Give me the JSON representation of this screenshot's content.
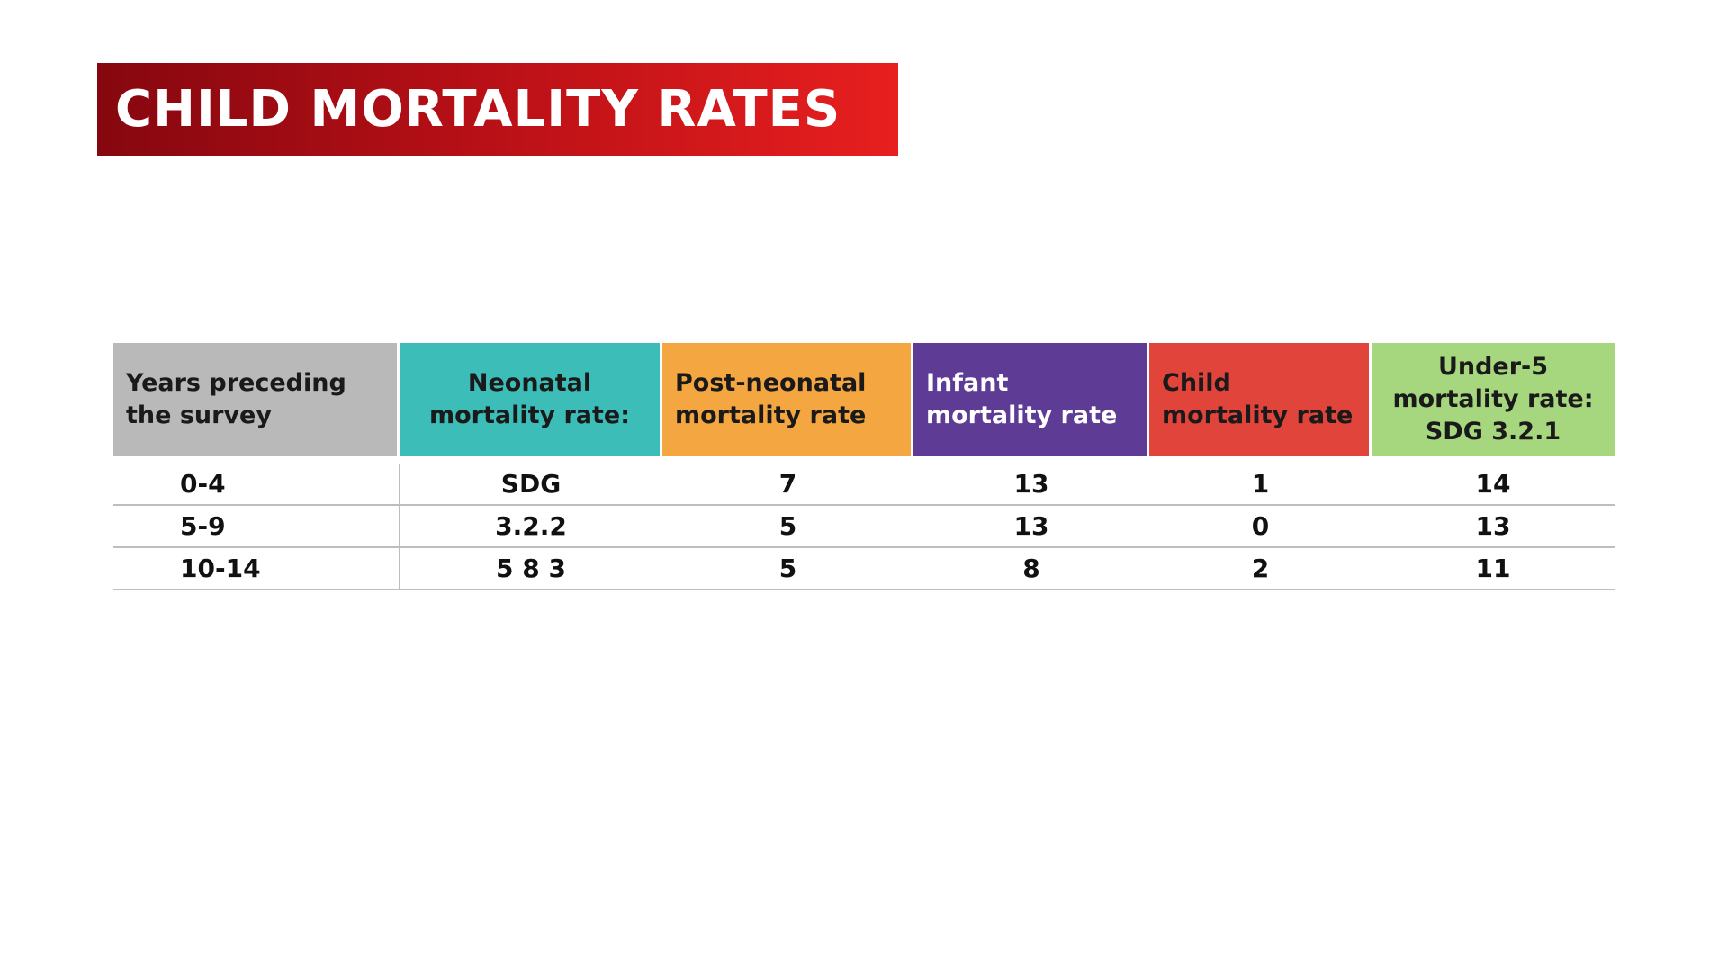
{
  "title": "CHILD MORTALITY RATES",
  "table": {
    "header": [
      "Years preceding the survey",
      "Neonatal mortality rate:",
      "Post-neonatal mortality rate",
      "Infant mortality rate",
      "Child mortality rate",
      "Under-5 mortality rate: SDG 3.2.1"
    ],
    "rows": [
      [
        "0-4",
        "SDG",
        7,
        13,
        1,
        14
      ],
      [
        "5-9",
        "3.2.2",
        5,
        13,
        0,
        13
      ],
      [
        "10-14",
        "5 8 3",
        5,
        8,
        2,
        11
      ]
    ]
  }
}
